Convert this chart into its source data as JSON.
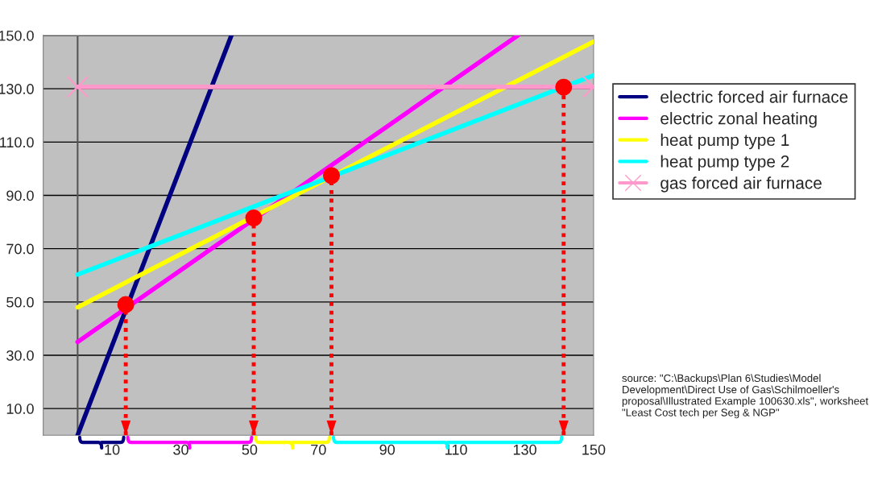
{
  "chart_data": {
    "type": "line",
    "xlim": [
      -10,
      150
    ],
    "xticks": [
      10,
      30,
      50,
      70,
      90,
      110,
      130,
      150
    ],
    "ylim": [
      0,
      150
    ],
    "yticks": [
      {
        "value": 10,
        "label": "10.0"
      },
      {
        "value": 30,
        "label": "30.0"
      },
      {
        "value": 50,
        "label": "50.0"
      },
      {
        "value": 70,
        "label": "70.0"
      },
      {
        "value": 90,
        "label": "90.0"
      },
      {
        "value": 110,
        "label": "110.0"
      },
      {
        "value": 130,
        "label": "130.0"
      },
      {
        "value": 150,
        "label": "150.0"
      }
    ],
    "grid": "y",
    "legend": "right",
    "line_style": "solid",
    "series": [
      {
        "name": "electric forced air furnace",
        "color": "#000080",
        "x": [
          0,
          44.7
        ],
        "values": [
          0,
          150
        ]
      },
      {
        "name": "electric zonal heating",
        "color": "#ff00ff",
        "x": [
          0,
          128
        ],
        "values": [
          35,
          150
        ]
      },
      {
        "name": "heat pump type 1",
        "color": "#ffff00",
        "x": [
          0,
          150
        ],
        "values": [
          48,
          147.7
        ]
      },
      {
        "name": "heat pump type 2",
        "color": "#00ffff",
        "x": [
          0,
          150
        ],
        "values": [
          60.3,
          135
        ]
      },
      {
        "name": "gas forced air furnace",
        "color": "#ff99cc",
        "x": [
          0,
          150
        ],
        "values": [
          130.7,
          130.7
        ],
        "marker": "cross"
      },
      {
        "type": "scatter",
        "color": "#ff0000",
        "x": [
          14,
          51.2,
          73.8,
          141.3
        ],
        "values": [
          49,
          81.5,
          97.4,
          130.6
        ],
        "errors": [
          [
            49,
            0
          ],
          [
            81.5,
            0
          ],
          [
            97.4,
            0
          ],
          [
            130.6,
            0
          ]
        ],
        "marker": "circle"
      }
    ],
    "annotations": [
      "source: \"C:\\Backups\\Plan 6\\Studies\\Model Development\\Direct Use of Gas\\Schilmoeller's proposal\\Illustrated Example 100630.xls\", worksheet \"Least Cost tech per Seg & NGP\""
    ]
  }
}
